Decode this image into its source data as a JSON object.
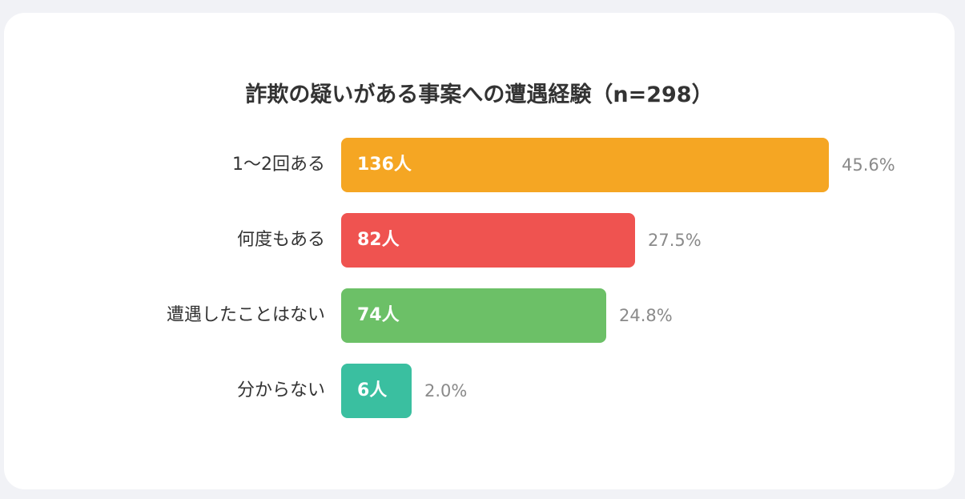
{
  "chart_data": {
    "type": "bar",
    "orientation": "horizontal",
    "title": "詐欺の疑いがある事案への遭遇経験（n=298）",
    "categories": [
      "1〜2回ある",
      "何度もある",
      "遭遇したことはない",
      "分からない"
    ],
    "values": [
      136,
      82,
      74,
      6
    ],
    "value_labels": [
      "136人",
      "82人",
      "74人",
      "6人"
    ],
    "percent_labels": [
      "45.6%",
      "27.5%",
      "24.8%",
      "2.0%"
    ],
    "colors": [
      "#f5a623",
      "#ef5350",
      "#6cc067",
      "#3abfa0"
    ],
    "xlim": [
      0,
      136
    ],
    "grid": false,
    "legend": "none"
  }
}
